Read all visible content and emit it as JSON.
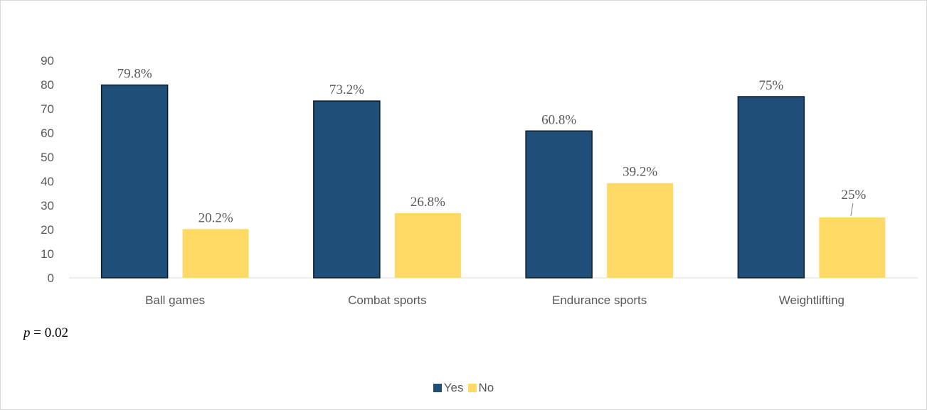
{
  "chart_data": {
    "type": "bar",
    "categories": [
      "Ball games",
      "Combat sports",
      "Endurance sports",
      "Weightlifting"
    ],
    "series": [
      {
        "name": "Yes",
        "values": [
          79.8,
          73.2,
          60.8,
          75
        ],
        "labels": [
          "79.8%",
          "73.2%",
          "60.8%",
          "75%"
        ],
        "color": "#1f4e79"
      },
      {
        "name": "No",
        "values": [
          20.2,
          26.8,
          39.2,
          25
        ],
        "labels": [
          "20.2%",
          "26.8%",
          "39.2%",
          "25%"
        ],
        "color": "#ffd966"
      }
    ],
    "yticks": [
      "0",
      "10",
      "20",
      "30",
      "40",
      "50",
      "60",
      "70",
      "80",
      "90"
    ],
    "ylim": [
      0,
      90
    ],
    "grid": false,
    "legend_position": "bottom",
    "annotation": {
      "symbol": "p",
      "rest": " = 0.02"
    }
  }
}
